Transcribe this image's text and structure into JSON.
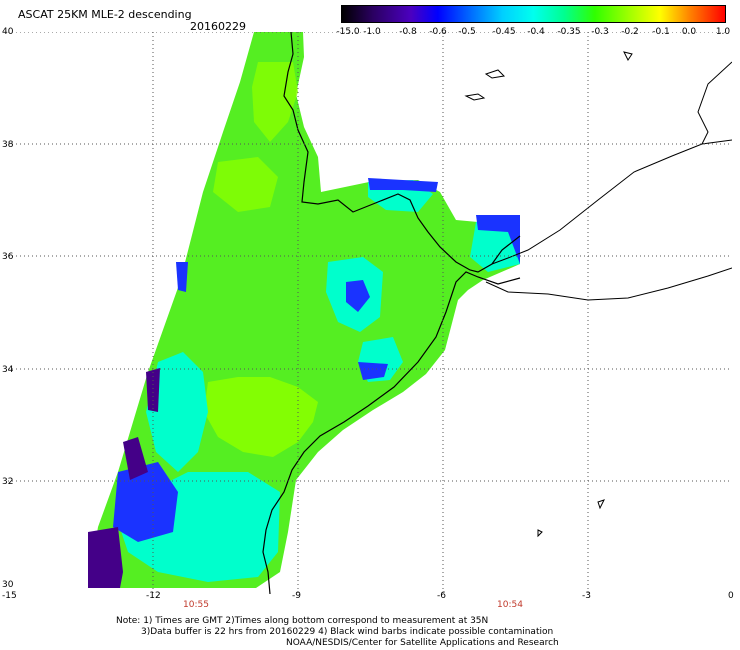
{
  "header": {
    "title": "ASCAT 25KM MLE-2 descending",
    "date": "20160229"
  },
  "colorbar": {
    "labels": [
      "-15.0",
      "-1.0",
      "-0.8",
      "-0.6",
      "-0.5",
      "-0.45",
      "-0.4",
      "-0.35",
      "-0.3",
      "-0.2",
      "-0.1",
      "0.0",
      "1.0"
    ],
    "colors": [
      "#000000",
      "#200050",
      "#4a00a0",
      "#0000ff",
      "#0060ff",
      "#00b0ff",
      "#00ffff",
      "#00ff80",
      "#40ff00",
      "#a0ff00",
      "#ffff00",
      "#ff8000",
      "#ff0000"
    ]
  },
  "axes": {
    "y_ticks": [
      "40",
      "38",
      "36",
      "34",
      "32",
      "30"
    ],
    "x_ticks": [
      "-15",
      "-12",
      "-9",
      "-6",
      "-3",
      "0"
    ],
    "lat_range": [
      30,
      40
    ],
    "lon_range": [
      -15,
      0
    ]
  },
  "pass_times": [
    "10:55",
    "10:54"
  ],
  "footer": {
    "line1": "Note: 1) Times are GMT 2)Times along bottom correspond to measurement at 35N",
    "line2": "3)Data buffer is 22 hrs from 20160229 4) Black wind barbs indicate possible contamination",
    "line3": "NOAA/NESDIS/Center for Satellite Applications and Research"
  },
  "swath_colors": {
    "green": "#55ee22",
    "lime": "#88ff00",
    "cyan": "#00ffcc",
    "blue": "#0044ff",
    "purple": "#440088"
  }
}
